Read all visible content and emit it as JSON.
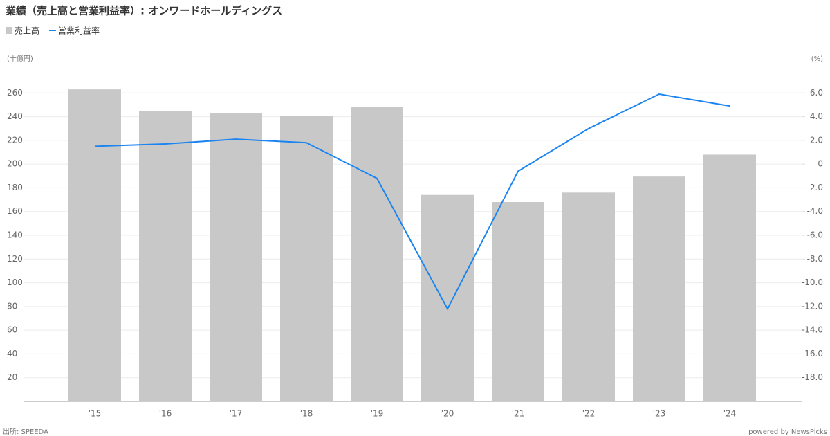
{
  "chart_data": {
    "type": "bar-line",
    "title": "業績（売上高と営業利益率）: オンワードホールディングス",
    "y_unit": "(十億円)",
    "y2_unit": "(%)",
    "source": "出所: SPEEDA",
    "credit": "powered by NewsPicks",
    "categories": [
      "'15",
      "'16",
      "'17",
      "'18",
      "'19",
      "'20",
      "'21",
      "'22",
      "'23",
      "'24"
    ],
    "series": [
      {
        "name": "売上高",
        "type": "bar",
        "color": "#c8c8c8",
        "values": [
          263,
          245,
          243,
          240.5,
          248,
          174,
          168,
          176,
          189.5,
          208
        ]
      },
      {
        "name": "営業利益率",
        "type": "line",
        "axis": "y2",
        "color": "#1a84f0",
        "values": [
          1.5,
          1.7,
          2.1,
          1.8,
          -1.2,
          -12.2,
          -0.6,
          3.0,
          5.9,
          4.9
        ]
      }
    ],
    "ylim": [
      0,
      280
    ],
    "yticks": [
      20,
      40,
      60,
      80,
      100,
      120,
      140,
      160,
      180,
      200,
      220,
      240,
      260
    ],
    "y2lim": [
      -20,
      8
    ],
    "y2ticks": [
      {
        "value": 6,
        "label": "6.0"
      },
      {
        "value": 4,
        "label": "4.0"
      },
      {
        "value": 2,
        "label": "2.0"
      },
      0,
      {
        "value": -2,
        "label": "-2.0"
      },
      {
        "value": -4,
        "label": "-4.0"
      },
      {
        "value": -6,
        "label": "-6.0"
      },
      {
        "value": -8,
        "label": "-8.0"
      },
      {
        "value": -10,
        "label": "-10.0"
      },
      {
        "value": -12,
        "label": "-12.0"
      },
      {
        "value": -14,
        "label": "-14.0"
      },
      {
        "value": -16,
        "label": "-16.0"
      },
      {
        "value": -18,
        "label": "-18.0"
      }
    ],
    "grid": true
  }
}
